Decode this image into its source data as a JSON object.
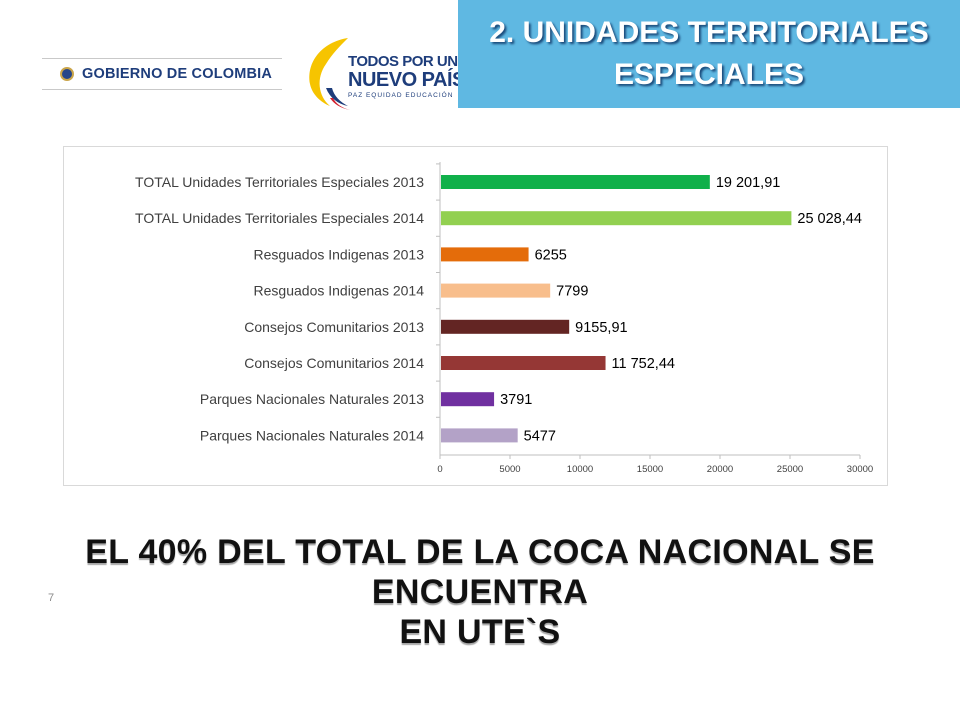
{
  "header": {
    "gov_logo_text": "GOBIERNO DE COLOMBIA",
    "campaign_line1": "TODOS POR UN",
    "campaign_line2": "NUEVO PAÍS",
    "campaign_tagline": "PAZ  EQUIDAD  EDUCACIÓN",
    "title_line1": "2. UNIDADES TERRITORIALES",
    "title_line2": "ESPECIALES"
  },
  "colors": {
    "title_band": "#5fb8e2",
    "accent_text": "#1e3d7b"
  },
  "chart_data": {
    "type": "bar",
    "orientation": "horizontal",
    "categories": [
      "TOTAL  Unidades Territoriales Especiales 2013",
      "TOTAL Unidades Territoriales Especiales  2014",
      "Resguados Indigenas 2013",
      "Resguados Indigenas 2014",
      "Consejos Comunitarios 2013",
      "Consejos Comunitarios 2014",
      "Parques Nacionales Naturales 2013",
      "Parques Nacionales Naturales 2014"
    ],
    "values": [
      19201.91,
      25028.44,
      6255,
      7799,
      9155.91,
      11752.44,
      3791,
      5477
    ],
    "value_labels": [
      "19 201,91",
      "25 028,44",
      "6255",
      "7799",
      "9155,91",
      "11 752,44",
      "3791",
      "5477"
    ],
    "bar_colors": [
      "#10b04a",
      "#92d050",
      "#e46c0a",
      "#f8be8c",
      "#632523",
      "#953735",
      "#7030a0",
      "#b3a2c7"
    ],
    "xlim": [
      0,
      30000
    ],
    "x_ticks": [
      0,
      5000,
      10000,
      15000,
      20000,
      25000,
      30000
    ],
    "grid": false,
    "legend": "none"
  },
  "headline": {
    "line1": "EL 40% DEL TOTAL DE LA COCA NACIONAL SE ENCUENTRA",
    "line2": "EN UTE`S"
  },
  "page_number": "7"
}
